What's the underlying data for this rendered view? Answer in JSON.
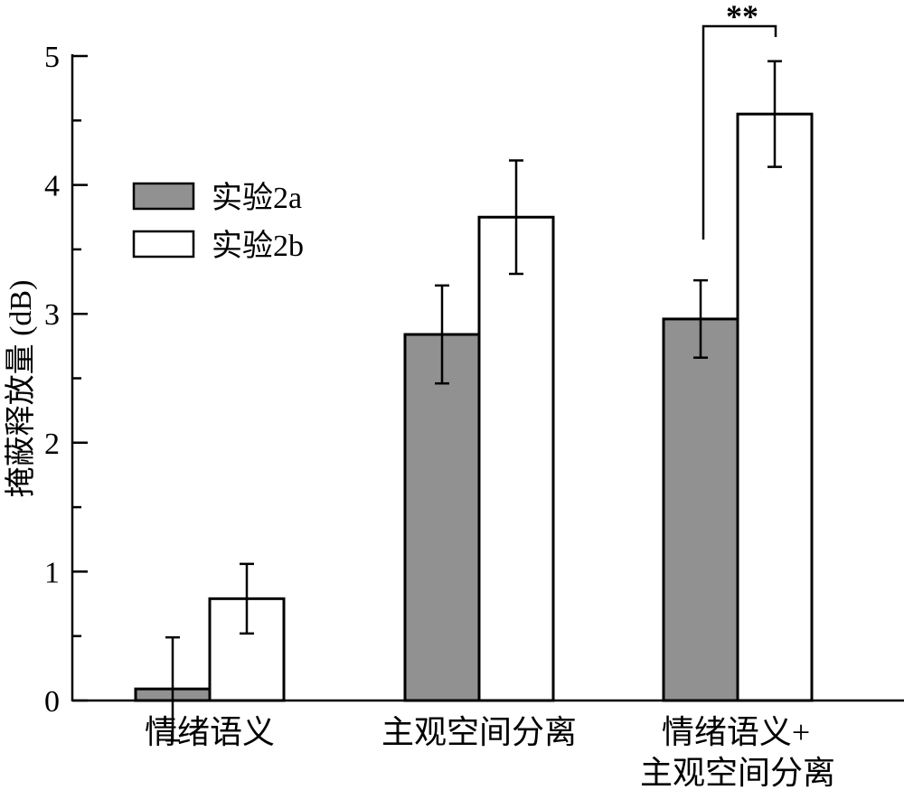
{
  "chart_data": {
    "type": "bar",
    "title": "",
    "xlabel": "",
    "ylabel": "掩蔽释放量 (dB)",
    "ylim": [
      0,
      5
    ],
    "yticks": [
      "0",
      "1",
      "2",
      "3",
      "4",
      "5"
    ],
    "categories": [
      [
        "情绪语义"
      ],
      [
        "主观空间分离"
      ],
      [
        "情绪语义+",
        "主观空间分离"
      ]
    ],
    "series": [
      {
        "name": "实验2a",
        "color": "#919191",
        "values": [
          0.09,
          2.84,
          2.96
        ],
        "errors": [
          0.4,
          0.38,
          0.3
        ]
      },
      {
        "name": "实验2b",
        "color": "#ffffff",
        "values": [
          0.79,
          3.75,
          4.55
        ],
        "errors": [
          0.27,
          0.44,
          0.41
        ]
      }
    ],
    "legend_position": "top-left",
    "grid": false,
    "annotations": [
      {
        "text": "**",
        "between": [
          "实验2a",
          "实验2b"
        ],
        "category_index": 2
      }
    ]
  }
}
